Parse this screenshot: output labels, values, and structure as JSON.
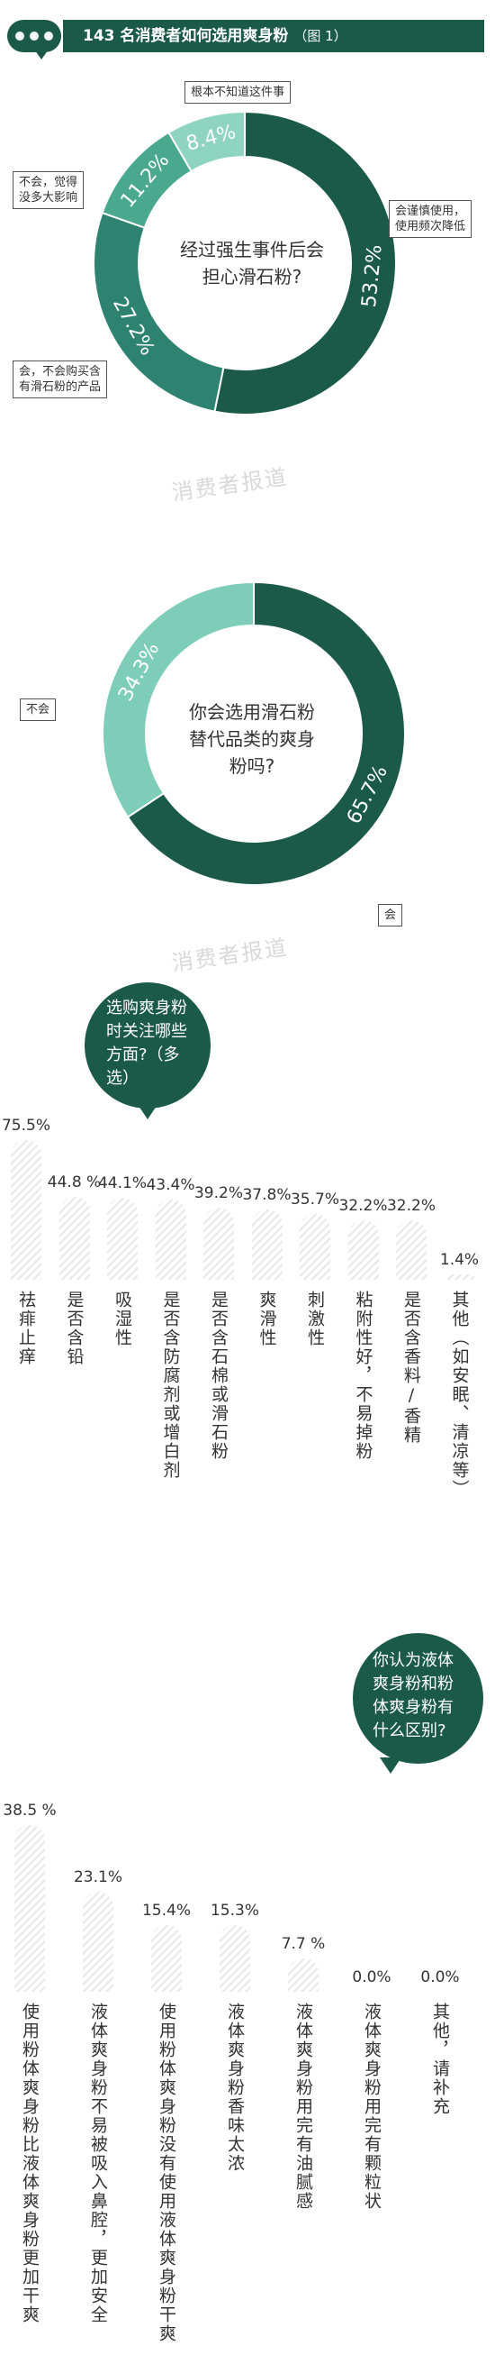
{
  "header": {
    "title": "143 名消费者如何选用爽身粉",
    "figure": "（图 1）"
  },
  "watermark": "消费者报道",
  "colors": {
    "dark": "#1b5a49",
    "mid": "#2e8270",
    "light": "#7ecdb9",
    "bar_hatch": "#e0e0e0"
  },
  "chart_data": [
    {
      "type": "pie",
      "style": "donut",
      "title": "经过强生事件后会担心滑石粉?",
      "center_lines": [
        "经过强生事件后会",
        "担心滑石粉?"
      ],
      "slices": [
        {
          "label": "会谨慎使用，使用频次降低",
          "label_lines": [
            "会谨慎使用，",
            "使用频次降低"
          ],
          "value": 53.2,
          "value_text": "53.2%",
          "color": "#1b5a49"
        },
        {
          "label": "会，不会购买含有滑石粉的产品",
          "label_lines": [
            "会，不会购买含",
            "有滑石粉的产品"
          ],
          "value": 27.2,
          "value_text": "27.2%",
          "color": "#2e8270"
        },
        {
          "label": "不会，觉得没多大影响",
          "label_lines": [
            "不会，觉得",
            "没多大影响"
          ],
          "value": 11.2,
          "value_text": "11.2%",
          "color": "#4aa88f"
        },
        {
          "label": "根本不知道这件事",
          "label_lines": [
            "根本不知道这件事"
          ],
          "value": 8.4,
          "value_text": "8.4%",
          "color": "#8fd3c1"
        }
      ]
    },
    {
      "type": "pie",
      "style": "donut",
      "title": "你会选用滑石粉替代品类的爽身粉吗?",
      "center_lines": [
        "你会选用滑石粉",
        "替代品类的爽身",
        "粉吗?"
      ],
      "slices": [
        {
          "label": "会",
          "label_lines": [
            "会"
          ],
          "value": 65.7,
          "value_text": "65.7%",
          "color": "#1b5a49"
        },
        {
          "label": "不会",
          "label_lines": [
            "不会"
          ],
          "value": 34.3,
          "value_text": "34.3%",
          "color": "#7ecdb9"
        }
      ]
    },
    {
      "type": "bar",
      "title": "选购爽身粉时关注哪些方面?（多选）",
      "bubble_lines": [
        "选购爽身粉",
        "时关注哪些",
        "方面?（多",
        "选）"
      ],
      "categories": [
        "祛痱止痒",
        "是否含铅",
        "吸湿性",
        "是否含防腐剂或增白剂",
        "是否含石棉或滑石粉",
        "爽滑性",
        "刺激性",
        "粘附性好，不易掉粉",
        "是否含香料/香精",
        "其他（如安眠、清凉等）"
      ],
      "values": [
        75.5,
        44.8,
        44.1,
        43.4,
        39.2,
        37.8,
        35.7,
        32.2,
        32.2,
        1.4
      ],
      "value_labels": [
        "75.5%",
        "44.8 %",
        "44.1%",
        "43.4%",
        "39.2%",
        "37.8%",
        "35.7%",
        "32.2%",
        "32.2%",
        "1.4%"
      ]
    },
    {
      "type": "bar",
      "title": "你认为液体爽身粉和粉体爽身粉有什么区别?",
      "bubble_lines": [
        "你认为液体",
        "爽身粉和粉",
        "体爽身粉有",
        "什么区别?"
      ],
      "categories": [
        "使用粉体爽身粉比液体爽身粉更加干爽",
        "液体爽身粉不易被吸入鼻腔，更加安全",
        "使用粉体爽身粉没有使用液体爽身粉干爽",
        "液体爽身粉香味太浓",
        "液体爽身粉用完有油腻感",
        "液体爽身粉用完有颗粒状",
        "其他，请补充"
      ],
      "values": [
        38.5,
        23.1,
        15.4,
        15.3,
        7.7,
        0.0,
        0.0
      ],
      "value_labels": [
        "38.5 %",
        "23.1%",
        "15.4%",
        "15.3%",
        "7.7 %",
        "0.0%",
        "0.0%"
      ]
    }
  ]
}
